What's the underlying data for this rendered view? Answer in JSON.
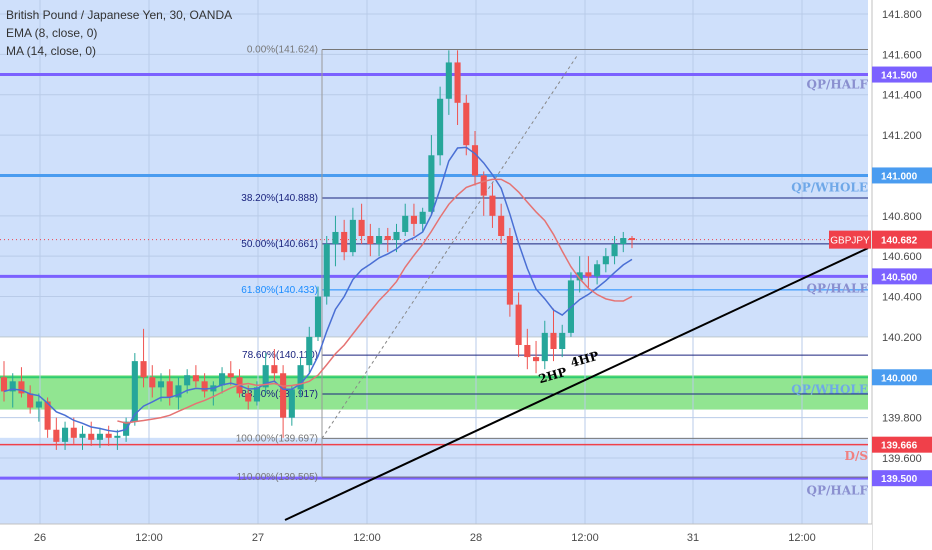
{
  "header": {
    "title": "British Pound / Japanese Yen, 30, OANDA",
    "indicator1": "EMA (8, close, 0)",
    "indicator2": "MA (14, close, 0)"
  },
  "colors": {
    "background_blue": "#cfe0fb",
    "candle_up": "#26a69a",
    "candle_down": "#ef5350",
    "ema": "#4a6fd4",
    "ma": "#e57373",
    "green_zone": "#7ee07e",
    "purple_line": "#7b61ff",
    "whole_line": "#4a9cf0",
    "fib_line": "#1a237e",
    "trendline": "#000000",
    "price_badge": "#f0404a"
  },
  "chart_data": {
    "type": "candlestick",
    "symbol": "GBPJPY",
    "timeframe": "30",
    "ylim": [
      139.45,
      141.85
    ],
    "y_ticks": [
      "141.800",
      "141.600",
      "141.400",
      "141.200",
      "140.800",
      "140.600",
      "140.400",
      "140.200",
      "139.800",
      "139.600"
    ],
    "x_ticks": [
      "26",
      "12:00",
      "27",
      "12:00",
      "28",
      "12:00",
      "31",
      "12:00"
    ],
    "x_values": [
      "26 00:00",
      "26 12:00",
      "27 00:00",
      "27 12:00",
      "28 00:00",
      "28 12:00",
      "31 00:00",
      "31 12:00"
    ],
    "last_price": {
      "label": "GBPJPY",
      "value": "140.682"
    },
    "price_labels": [
      {
        "value": "141.500",
        "color": "#7b61ff"
      },
      {
        "value": "141.000",
        "color": "#4a9cf0"
      },
      {
        "value": "140.500",
        "color": "#7b61ff"
      },
      {
        "value": "140.000",
        "color": "#4a9cf0"
      },
      {
        "value": "139.666",
        "color": "#f0404a"
      },
      {
        "value": "139.500",
        "color": "#7b61ff"
      }
    ],
    "fib_levels": [
      {
        "label": "0.00%(141.624)",
        "price": 141.624,
        "color": "#777777"
      },
      {
        "label": "38.20%(140.888)",
        "price": 140.888,
        "color": "#1a237e"
      },
      {
        "label": "50.00%(140.661)",
        "price": 140.661,
        "color": "#1a237e"
      },
      {
        "label": "61.80%(140.433)",
        "price": 140.433,
        "color": "#1a8cff"
      },
      {
        "label": "78.60%(140.110)",
        "price": 140.11,
        "color": "#1a237e"
      },
      {
        "label": "88.60%(139.917)",
        "price": 139.917,
        "color": "#1a237e"
      },
      {
        "label": "100.00%(139.697)",
        "price": 139.697,
        "color": "#777777"
      },
      {
        "label": "110.00%(139.505)",
        "price": 139.505,
        "color": "#777777"
      }
    ],
    "zone_labels": [
      {
        "text": "QP/HALF",
        "price": 141.45,
        "color": "#8a8fcf"
      },
      {
        "text": "QP/WHOLE",
        "price": 140.94,
        "color": "#6fa8e8"
      },
      {
        "text": "QP/HALF",
        "price": 140.44,
        "color": "#8a8fcf"
      },
      {
        "text": "QP/WHOLE",
        "price": 139.94,
        "color": "#6fa8e8"
      },
      {
        "text": "D/S",
        "price": 139.61,
        "color": "#f08080"
      },
      {
        "text": "QP/HALF",
        "price": 139.44,
        "color": "#8a8fcf"
      }
    ],
    "trend_labels": [
      "2HP",
      "4HP"
    ],
    "candles": [
      [
        140.0,
        140.08,
        139.88,
        139.93
      ],
      [
        139.93,
        140.02,
        139.85,
        139.98
      ],
      [
        139.98,
        140.05,
        139.9,
        139.92
      ],
      [
        139.92,
        139.96,
        139.82,
        139.85
      ],
      [
        139.85,
        139.92,
        139.78,
        139.88
      ],
      [
        139.88,
        139.9,
        139.7,
        139.74
      ],
      [
        139.74,
        139.8,
        139.64,
        139.68
      ],
      [
        139.68,
        139.78,
        139.64,
        139.75
      ],
      [
        139.75,
        139.8,
        139.67,
        139.7
      ],
      [
        139.7,
        139.76,
        139.64,
        139.72
      ],
      [
        139.72,
        139.78,
        139.66,
        139.69
      ],
      [
        139.69,
        139.75,
        139.65,
        139.72
      ],
      [
        139.72,
        139.76,
        139.66,
        139.7
      ],
      [
        139.7,
        139.74,
        139.64,
        139.71
      ],
      [
        139.71,
        139.8,
        139.68,
        139.78
      ],
      [
        139.78,
        140.12,
        139.76,
        140.08
      ],
      [
        140.08,
        140.24,
        139.95,
        140.0
      ],
      [
        140.0,
        140.06,
        139.9,
        139.95
      ],
      [
        139.95,
        140.02,
        139.88,
        139.98
      ],
      [
        139.98,
        140.04,
        139.86,
        139.9
      ],
      [
        139.9,
        140.0,
        139.84,
        139.96
      ],
      [
        139.96,
        140.04,
        139.92,
        140.01
      ],
      [
        140.01,
        140.06,
        139.95,
        139.98
      ],
      [
        139.98,
        140.02,
        139.9,
        139.93
      ],
      [
        139.93,
        139.98,
        139.86,
        139.96
      ],
      [
        139.96,
        140.05,
        139.92,
        140.02
      ],
      [
        140.02,
        140.08,
        139.96,
        140.0
      ],
      [
        140.0,
        140.04,
        139.9,
        139.92
      ],
      [
        139.92,
        139.96,
        139.84,
        139.88
      ],
      [
        139.88,
        139.98,
        139.86,
        139.95
      ],
      [
        139.95,
        140.12,
        139.92,
        140.06
      ],
      [
        140.06,
        140.14,
        139.98,
        140.02
      ],
      [
        140.02,
        140.06,
        139.7,
        139.8
      ],
      [
        139.8,
        139.96,
        139.76,
        139.94
      ],
      [
        139.94,
        140.1,
        139.9,
        140.06
      ],
      [
        140.06,
        140.25,
        140.02,
        140.2
      ],
      [
        140.2,
        140.45,
        140.18,
        140.4
      ],
      [
        140.4,
        140.7,
        140.36,
        140.66
      ],
      [
        140.66,
        140.8,
        140.55,
        140.72
      ],
      [
        140.72,
        140.78,
        140.58,
        140.62
      ],
      [
        140.62,
        140.84,
        140.6,
        140.78
      ],
      [
        140.78,
        140.86,
        140.66,
        140.7
      ],
      [
        140.7,
        140.76,
        140.6,
        140.66
      ],
      [
        140.66,
        140.74,
        140.6,
        140.7
      ],
      [
        140.7,
        140.74,
        140.62,
        140.68
      ],
      [
        140.68,
        140.76,
        140.62,
        140.72
      ],
      [
        140.72,
        140.86,
        140.7,
        140.8
      ],
      [
        140.8,
        140.86,
        140.7,
        140.76
      ],
      [
        140.76,
        140.84,
        140.72,
        140.82
      ],
      [
        140.82,
        141.2,
        140.8,
        141.1
      ],
      [
        141.1,
        141.44,
        141.05,
        141.38
      ],
      [
        141.38,
        141.62,
        141.3,
        141.56
      ],
      [
        141.56,
        141.62,
        141.25,
        141.36
      ],
      [
        141.36,
        141.4,
        141.1,
        141.15
      ],
      [
        141.15,
        141.22,
        140.95,
        141.0
      ],
      [
        141.0,
        141.02,
        140.8,
        140.9
      ],
      [
        140.9,
        140.96,
        140.74,
        140.8
      ],
      [
        140.8,
        140.86,
        140.66,
        140.7
      ],
      [
        140.7,
        140.74,
        140.3,
        140.36
      ],
      [
        140.36,
        140.42,
        140.1,
        140.16
      ],
      [
        140.16,
        140.24,
        140.04,
        140.1
      ],
      [
        140.1,
        140.18,
        140.02,
        140.08
      ],
      [
        140.08,
        140.28,
        140.04,
        140.22
      ],
      [
        140.22,
        140.34,
        140.08,
        140.14
      ],
      [
        140.14,
        140.26,
        140.1,
        140.22
      ],
      [
        140.22,
        140.52,
        140.2,
        140.48
      ],
      [
        140.48,
        140.6,
        140.42,
        140.52
      ],
      [
        140.52,
        140.6,
        140.44,
        140.5
      ],
      [
        140.5,
        140.58,
        140.46,
        140.56
      ],
      [
        140.56,
        140.64,
        140.52,
        140.6
      ],
      [
        140.6,
        140.7,
        140.56,
        140.66
      ],
      [
        140.66,
        140.72,
        140.62,
        140.69
      ],
      [
        140.69,
        140.7,
        140.64,
        140.68
      ]
    ]
  }
}
